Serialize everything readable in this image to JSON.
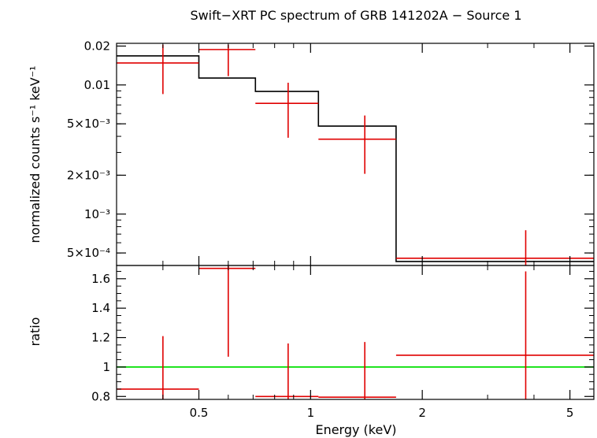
{
  "title": "Swift−XRT PC spectrum of GRB 141202A − Source 1",
  "colors": {
    "data": "#e00000",
    "model": "#000000",
    "unity": "#00e000",
    "frame": "#000000"
  },
  "chart_data": [
    {
      "panel": "top",
      "type": "line",
      "xlabel": "Energy (keV)",
      "ylabel": "normalized counts s⁻¹ keV⁻¹",
      "x_scale": "log",
      "y_scale": "log",
      "xlim": [
        0.3,
        5.8
      ],
      "ylim": [
        0.0004,
        0.021
      ],
      "yticks": [
        {
          "value": 0.02,
          "label": "0.02"
        },
        {
          "value": 0.01,
          "label": "0.01"
        },
        {
          "value": 0.005,
          "label": "5×10⁻³"
        },
        {
          "value": 0.002,
          "label": "2×10⁻³"
        },
        {
          "value": 0.001,
          "label": "10⁻³"
        },
        {
          "value": 0.0005,
          "label": "5×10⁻⁴"
        }
      ],
      "data_points": [
        {
          "x_lo": 0.3,
          "x_hi": 0.5,
          "x": 0.4,
          "y": 0.0148,
          "y_lo": 0.0085,
          "y_hi": 0.0205
        },
        {
          "x_lo": 0.5,
          "x_hi": 0.71,
          "x": 0.6,
          "y": 0.0188,
          "y_lo": 0.0117,
          "y_hi": 0.0205
        },
        {
          "x_lo": 0.71,
          "x_hi": 1.05,
          "x": 0.87,
          "y": 0.0072,
          "y_lo": 0.0039,
          "y_hi": 0.0104
        },
        {
          "x_lo": 1.05,
          "x_hi": 1.7,
          "x": 1.4,
          "y": 0.0038,
          "y_lo": 0.00205,
          "y_hi": 0.0058
        },
        {
          "x_lo": 1.7,
          "x_hi": 5.8,
          "x": 3.8,
          "y": 0.000455,
          "y_lo": 0.0004,
          "y_hi": 0.00075
        }
      ],
      "model_steps": [
        {
          "x_lo": 0.3,
          "x_hi": 0.5,
          "y": 0.0168
        },
        {
          "x_lo": 0.5,
          "x_hi": 0.71,
          "y": 0.0113
        },
        {
          "x_lo": 0.71,
          "x_hi": 1.05,
          "y": 0.0089
        },
        {
          "x_lo": 1.05,
          "x_hi": 1.7,
          "y": 0.0048
        },
        {
          "x_lo": 1.7,
          "x_hi": 5.8,
          "y": 0.00043
        }
      ]
    },
    {
      "panel": "bottom",
      "type": "scatter",
      "xlabel": "Energy (keV)",
      "ylabel": "ratio",
      "x_scale": "log",
      "y_scale": "linear",
      "xlim": [
        0.3,
        5.8
      ],
      "ylim": [
        0.78,
        1.69
      ],
      "xticks": [
        {
          "value": 0.5,
          "label": "0.5"
        },
        {
          "value": 1,
          "label": "1"
        },
        {
          "value": 2,
          "label": "2"
        },
        {
          "value": 5,
          "label": "5"
        }
      ],
      "yticks": [
        {
          "value": 0.8,
          "label": "0.8"
        },
        {
          "value": 1.0,
          "label": "1"
        },
        {
          "value": 1.2,
          "label": "1.2"
        },
        {
          "value": 1.4,
          "label": "1.4"
        },
        {
          "value": 1.6,
          "label": "1.6"
        }
      ],
      "reference_line": 1.0,
      "data_points": [
        {
          "x_lo": 0.3,
          "x_hi": 0.5,
          "x": 0.4,
          "y": 0.85,
          "y_lo": 0.78,
          "y_hi": 1.21
        },
        {
          "x_lo": 0.5,
          "x_hi": 0.71,
          "x": 0.6,
          "y": 1.67,
          "y_lo": 1.07,
          "y_hi": 1.69
        },
        {
          "x_lo": 0.71,
          "x_hi": 1.05,
          "x": 0.87,
          "y": 0.8,
          "y_lo": 0.78,
          "y_hi": 1.16
        },
        {
          "x_lo": 1.05,
          "x_hi": 1.7,
          "x": 1.4,
          "y": 0.795,
          "y_lo": 0.78,
          "y_hi": 1.17
        },
        {
          "x_lo": 1.7,
          "x_hi": 5.8,
          "x": 3.8,
          "y": 1.08,
          "y_lo": 0.78,
          "y_hi": 1.65
        }
      ]
    }
  ]
}
